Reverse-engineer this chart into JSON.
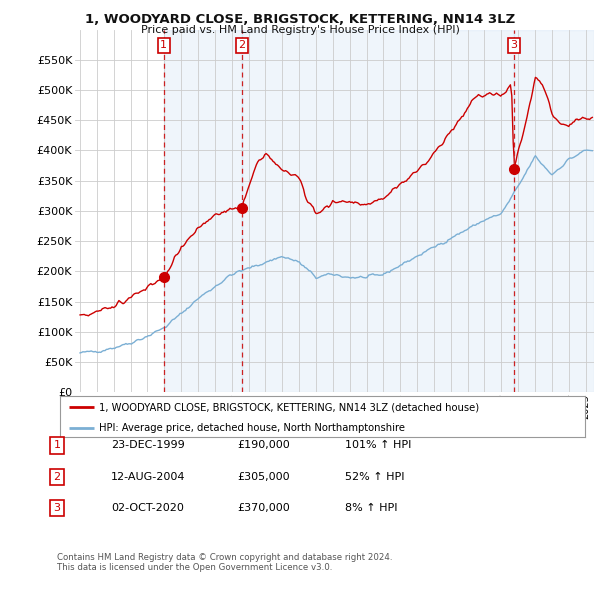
{
  "title": "1, WOODYARD CLOSE, BRIGSTOCK, KETTERING, NN14 3LZ",
  "subtitle": "Price paid vs. HM Land Registry's House Price Index (HPI)",
  "ylim": [
    0,
    600000
  ],
  "yticks": [
    0,
    50000,
    100000,
    150000,
    200000,
    250000,
    300000,
    350000,
    400000,
    450000,
    500000,
    550000
  ],
  "xlim_start": 1994.7,
  "xlim_end": 2025.5,
  "sale_dates": [
    1999.97,
    2004.62,
    2020.75
  ],
  "sale_prices": [
    190000,
    305000,
    370000
  ],
  "sale_labels": [
    "1",
    "2",
    "3"
  ],
  "sale_info": [
    {
      "label": "1",
      "date": "23-DEC-1999",
      "price": "£190,000",
      "hpi": "101% ↑ HPI"
    },
    {
      "label": "2",
      "date": "12-AUG-2004",
      "price": "£305,000",
      "hpi": "52% ↑ HPI"
    },
    {
      "label": "3",
      "date": "02-OCT-2020",
      "price": "£370,000",
      "hpi": "8% ↑ HPI"
    }
  ],
  "red_line_color": "#cc0000",
  "blue_line_color": "#7bafd4",
  "vline_color": "#cc2222",
  "shade_color": "#ddeeff",
  "legend_label_red": "1, WOODYARD CLOSE, BRIGSTOCK, KETTERING, NN14 3LZ (detached house)",
  "legend_label_blue": "HPI: Average price, detached house, North Northamptonshire",
  "footer1": "Contains HM Land Registry data © Crown copyright and database right 2024.",
  "footer2": "This data is licensed under the Open Government Licence v3.0.",
  "background_color": "#ffffff",
  "grid_color": "#cccccc"
}
